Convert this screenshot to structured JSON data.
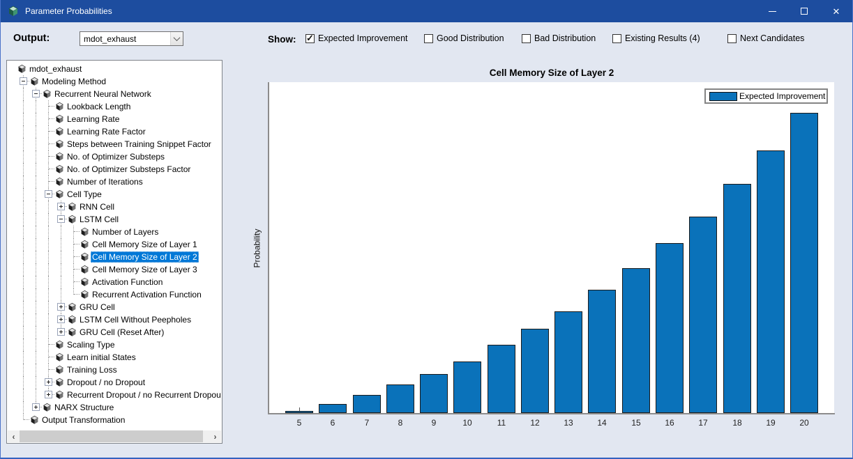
{
  "window": {
    "title": "Parameter Probabilities"
  },
  "toolbar": {
    "output_label": "Output:",
    "output_value": "mdot_exhaust",
    "show_label": "Show:",
    "checkboxes": [
      {
        "label": "Expected Improvement",
        "checked": true
      },
      {
        "label": "Good Distribution",
        "checked": false
      },
      {
        "label": "Bad Distribution",
        "checked": false
      },
      {
        "label": "Existing Results (4)",
        "checked": false
      },
      {
        "label": "Next Candidates",
        "checked": false
      }
    ]
  },
  "tree": {
    "items": [
      {
        "label": "mdot_exhaust",
        "level": 0,
        "expander": null
      },
      {
        "label": "Modeling Method",
        "level": 1,
        "expander": "minus"
      },
      {
        "label": "Recurrent Neural Network",
        "level": 2,
        "expander": "minus"
      },
      {
        "label": "Lookback Length",
        "level": 3,
        "expander": null
      },
      {
        "label": "Learning Rate",
        "level": 3,
        "expander": null
      },
      {
        "label": "Learning Rate Factor",
        "level": 3,
        "expander": null
      },
      {
        "label": "Steps between Training Snippet Factor",
        "level": 3,
        "expander": null
      },
      {
        "label": "No. of Optimizer Substeps",
        "level": 3,
        "expander": null
      },
      {
        "label": "No. of Optimizer Substeps Factor",
        "level": 3,
        "expander": null
      },
      {
        "label": "Number of Iterations",
        "level": 3,
        "expander": null
      },
      {
        "label": "Cell Type",
        "level": 3,
        "expander": "minus"
      },
      {
        "label": "RNN Cell",
        "level": 4,
        "expander": "plus"
      },
      {
        "label": "LSTM Cell",
        "level": 4,
        "expander": "minus"
      },
      {
        "label": "Number of Layers",
        "level": 5,
        "expander": null
      },
      {
        "label": "Cell Memory Size of Layer 1",
        "level": 5,
        "expander": null
      },
      {
        "label": "Cell Memory Size of Layer 2",
        "level": 5,
        "expander": null,
        "selected": true
      },
      {
        "label": "Cell Memory Size of Layer 3",
        "level": 5,
        "expander": null
      },
      {
        "label": "Activation Function",
        "level": 5,
        "expander": null
      },
      {
        "label": "Recurrent Activation Function",
        "level": 5,
        "expander": null
      },
      {
        "label": "GRU Cell",
        "level": 4,
        "expander": "plus"
      },
      {
        "label": "LSTM Cell Without Peepholes",
        "level": 4,
        "expander": "plus"
      },
      {
        "label": "GRU Cell (Reset After)",
        "level": 4,
        "expander": "plus"
      },
      {
        "label": "Scaling Type",
        "level": 3,
        "expander": null
      },
      {
        "label": "Learn initial States",
        "level": 3,
        "expander": null
      },
      {
        "label": "Training Loss",
        "level": 3,
        "expander": null
      },
      {
        "label": "Dropout / no Dropout",
        "level": 3,
        "expander": "plus"
      },
      {
        "label": "Recurrent Dropout / no Recurrent Dropout",
        "level": 3,
        "expander": "plus"
      },
      {
        "label": "NARX Structure",
        "level": 2,
        "expander": "plus"
      },
      {
        "label": "Output Transformation",
        "level": 1,
        "expander": null
      }
    ]
  },
  "chart_data": {
    "type": "bar",
    "title": "Cell Memory Size of Layer 2",
    "xlabel": "",
    "ylabel": "Probability",
    "categories": [
      "5",
      "6",
      "7",
      "8",
      "9",
      "10",
      "11",
      "12",
      "13",
      "14",
      "15",
      "16",
      "17",
      "18",
      "19",
      "20"
    ],
    "values": [
      0.001,
      0.005,
      0.01,
      0.016,
      0.022,
      0.029,
      0.038,
      0.047,
      0.057,
      0.069,
      0.081,
      0.095,
      0.11,
      0.128,
      0.147,
      0.168
    ],
    "ylim": [
      0,
      0.185
    ],
    "grid": false,
    "legend_position": "top-right",
    "legend": [
      {
        "label": "Expected Improvement",
        "color": "#0a72ba"
      }
    ],
    "bar_edge_color": "#1a1a1a"
  },
  "colors": {
    "title_bar": "#1d4d9f",
    "window_bg": "#e2e7f1",
    "selection": "#0078d7",
    "bar_fill": "#0a72ba"
  }
}
